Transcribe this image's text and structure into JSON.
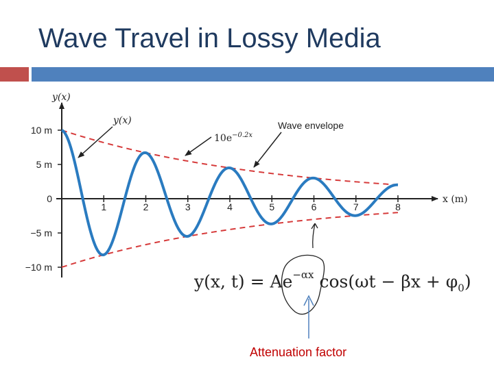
{
  "slide": {
    "title": "Wave Travel in Lossy Media"
  },
  "chart_data": {
    "type": "line",
    "xlabel": "x (m)",
    "ylabel": "y(x)",
    "xlim": [
      0,
      8
    ],
    "ylim": [
      -10,
      10
    ],
    "x_ticks": [
      1,
      2,
      3,
      4,
      5,
      6,
      7,
      8
    ],
    "y_ticks": [
      {
        "value": 10,
        "label": "10 m"
      },
      {
        "value": 5,
        "label": "5 m"
      },
      {
        "value": 0,
        "label": "0"
      },
      {
        "value": -5,
        "label": "−5 m"
      },
      {
        "value": -10,
        "label": "−10 m"
      }
    ],
    "series": [
      {
        "name": "y(x)",
        "function": "10*exp(-0.2x)*cos(2*pi*x/2)",
        "amplitude": 10,
        "alpha": 0.2,
        "wavelength": 2,
        "color": "#2a7bc0",
        "style": "solid"
      },
      {
        "name": "10e^{-0.2x}",
        "function": "10*exp(-0.2x)",
        "color": "#d63a3a",
        "style": "dashed"
      },
      {
        "name": "-10e^{-0.2x}",
        "function": "-10*exp(-0.2x)",
        "color": "#d63a3a",
        "style": "dashed"
      }
    ],
    "annotations": [
      {
        "text": "y(x)"
      },
      {
        "text_base": "10e",
        "text_sup": "−0.2x"
      },
      {
        "text": "Wave envelope"
      }
    ]
  },
  "formula": {
    "lhs": "y(x, t) = Ae",
    "exponent": "−αx",
    "rhs": " cos(ωt − βx + φ",
    "subscript": "0",
    "close": ")"
  },
  "callout": {
    "label": "Attenuation factor",
    "color": "#c00000"
  },
  "colors": {
    "title": "#1f3a5f",
    "accent_red": "#c0504d",
    "accent_blue": "#4f81bd"
  }
}
